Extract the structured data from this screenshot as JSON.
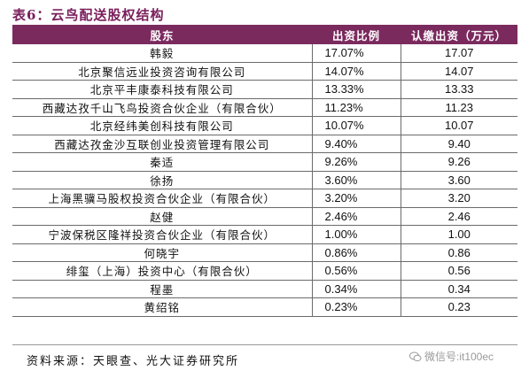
{
  "title": "表6：云鸟配送股权结构",
  "table": {
    "headers": [
      "股东",
      "出资比例",
      "认缴出资（万元）"
    ],
    "rows": [
      [
        "韩毅",
        "17.07%",
        "17.07"
      ],
      [
        "北京聚信远业投资咨询有限公司",
        "14.07%",
        "14.07"
      ],
      [
        "北京平丰康泰科技有限公司",
        "13.33%",
        "13.33"
      ],
      [
        "西藏达孜千山飞鸟投资合伙企业（有限合伙）",
        "11.23%",
        "11.23"
      ],
      [
        "北京经纬美创科技有限公司",
        "10.07%",
        "10.07"
      ],
      [
        "西藏达孜金沙互联创业投资管理有限公司",
        "9.40%",
        "9.40"
      ],
      [
        "秦适",
        "9.26%",
        "9.26"
      ],
      [
        "徐扬",
        "3.60%",
        "3.60"
      ],
      [
        "上海黑骥马股权投资合伙企业（有限合伙）",
        "3.20%",
        "3.20"
      ],
      [
        "赵健",
        "2.46%",
        "2.46"
      ],
      [
        "宁波保税区隆祥投资合伙企业（有限合伙）",
        "1.00%",
        "1.00"
      ],
      [
        "何晓宇",
        "0.86%",
        "0.86"
      ],
      [
        "绯玺（上海）投资中心（有限合伙）",
        "0.56%",
        "0.56"
      ],
      [
        "程墨",
        "0.34%",
        "0.34"
      ],
      [
        "黄绍铭",
        "0.23%",
        "0.23"
      ]
    ]
  },
  "source": "资料来源：天眼查、光大证券研究所",
  "watermark": "微信号:it100ec",
  "colors": {
    "header_bg": "#7b2a5e",
    "title": "#7a1f5c"
  }
}
